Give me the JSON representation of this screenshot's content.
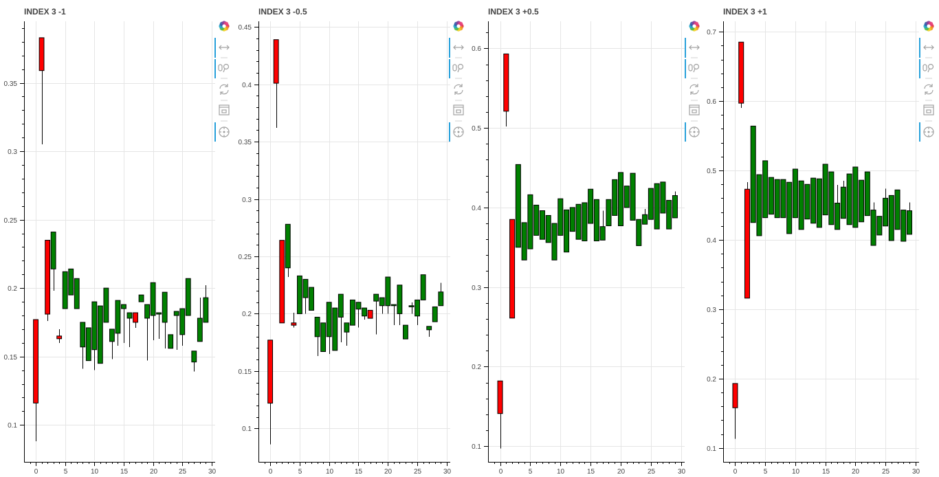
{
  "colors": {
    "increasing": "#008000",
    "decreasing": "#ff0000",
    "outline": "#000000",
    "grid": "#e5e5e5",
    "active_tool": "#26a0da"
  },
  "toolbar": {
    "icons": [
      "bokeh-logo-icon",
      "pan-icon",
      "wheel-zoom-icon",
      "reset-icon",
      "save-icon",
      "hover-icon"
    ]
  },
  "chart_data": [
    {
      "type": "candlestick",
      "title": "INDEX 3 -1",
      "xlim": [
        -2,
        30.6
      ],
      "ylim": [
        0.074,
        0.395
      ],
      "xticks": [
        0,
        5,
        10,
        15,
        20,
        25,
        30
      ],
      "yticks": [
        0.1,
        0.15,
        0.2,
        0.25,
        0.3,
        0.35
      ],
      "ytick_labels": [
        "0.1",
        "0.15",
        "0.2",
        "0.25",
        "0.3",
        "0.35"
      ],
      "candles": [
        {
          "x": 0,
          "open": 0.177,
          "close": 0.116,
          "high": 0.177,
          "low": 0.088
        },
        {
          "x": 1,
          "open": 0.383,
          "close": 0.359,
          "high": 0.383,
          "low": 0.305
        },
        {
          "x": 2,
          "open": 0.235,
          "close": 0.181,
          "high": 0.235,
          "low": 0.176
        },
        {
          "x": 3,
          "open": 0.214,
          "close": 0.241,
          "high": 0.241,
          "low": 0.198
        },
        {
          "x": 4,
          "open": 0.165,
          "close": 0.163,
          "high": 0.17,
          "low": 0.16
        },
        {
          "x": 5,
          "open": 0.185,
          "close": 0.212,
          "high": 0.212,
          "low": 0.185
        },
        {
          "x": 6,
          "open": 0.195,
          "close": 0.214,
          "high": 0.214,
          "low": 0.195
        },
        {
          "x": 7,
          "open": 0.185,
          "close": 0.207,
          "high": 0.207,
          "low": 0.185
        },
        {
          "x": 8,
          "open": 0.157,
          "close": 0.175,
          "high": 0.175,
          "low": 0.141
        },
        {
          "x": 9,
          "open": 0.147,
          "close": 0.171,
          "high": 0.171,
          "low": 0.147
        },
        {
          "x": 10,
          "open": 0.155,
          "close": 0.19,
          "high": 0.19,
          "low": 0.14
        },
        {
          "x": 11,
          "open": 0.145,
          "close": 0.187,
          "high": 0.187,
          "low": 0.145
        },
        {
          "x": 12,
          "open": 0.175,
          "close": 0.2,
          "high": 0.2,
          "low": 0.175
        },
        {
          "x": 13,
          "open": 0.161,
          "close": 0.17,
          "high": 0.17,
          "low": 0.148
        },
        {
          "x": 14,
          "open": 0.167,
          "close": 0.191,
          "high": 0.191,
          "low": 0.158
        },
        {
          "x": 15,
          "open": 0.185,
          "close": 0.188,
          "high": 0.188,
          "low": 0.16
        },
        {
          "x": 16,
          "open": 0.178,
          "close": 0.182,
          "high": 0.182,
          "low": 0.157
        },
        {
          "x": 17,
          "open": 0.182,
          "close": 0.175,
          "high": 0.182,
          "low": 0.171
        },
        {
          "x": 18,
          "open": 0.19,
          "close": 0.195,
          "high": 0.195,
          "low": 0.19
        },
        {
          "x": 19,
          "open": 0.178,
          "close": 0.188,
          "high": 0.188,
          "low": 0.147
        },
        {
          "x": 20,
          "open": 0.18,
          "close": 0.204,
          "high": 0.204,
          "low": 0.162
        },
        {
          "x": 21,
          "open": 0.181,
          "close": 0.182,
          "high": 0.182,
          "low": 0.163
        },
        {
          "x": 22,
          "open": 0.175,
          "close": 0.197,
          "high": 0.197,
          "low": 0.156
        },
        {
          "x": 23,
          "open": 0.156,
          "close": 0.166,
          "high": 0.166,
          "low": 0.156
        },
        {
          "x": 24,
          "open": 0.18,
          "close": 0.183,
          "high": 0.183,
          "low": 0.155
        },
        {
          "x": 25,
          "open": 0.166,
          "close": 0.185,
          "high": 0.185,
          "low": 0.158
        },
        {
          "x": 26,
          "open": 0.18,
          "close": 0.207,
          "high": 0.207,
          "low": 0.18
        },
        {
          "x": 27,
          "open": 0.146,
          "close": 0.154,
          "high": 0.154,
          "low": 0.139
        },
        {
          "x": 28,
          "open": 0.161,
          "close": 0.178,
          "high": 0.193,
          "low": 0.161
        },
        {
          "x": 29,
          "open": 0.175,
          "close": 0.193,
          "high": 0.202,
          "low": 0.175
        }
      ]
    },
    {
      "type": "candlestick",
      "title": "INDEX 3 -0.5",
      "xlim": [
        -2,
        30.6
      ],
      "ylim": [
        0.072,
        0.455
      ],
      "xticks": [
        0,
        5,
        10,
        15,
        20,
        25,
        30
      ],
      "yticks": [
        0.1,
        0.15,
        0.2,
        0.25,
        0.3,
        0.35,
        0.4,
        0.45
      ],
      "ytick_labels": [
        "0.1",
        "0.15",
        "0.2",
        "0.25",
        "0.3",
        "0.35",
        "0.4",
        "0.45"
      ],
      "candles": [
        {
          "x": 0,
          "open": 0.177,
          "close": 0.122,
          "high": 0.177,
          "low": 0.086
        },
        {
          "x": 1,
          "open": 0.439,
          "close": 0.401,
          "high": 0.439,
          "low": 0.362
        },
        {
          "x": 2,
          "open": 0.264,
          "close": 0.192,
          "high": 0.264,
          "low": 0.192
        },
        {
          "x": 3,
          "open": 0.24,
          "close": 0.278,
          "high": 0.278,
          "low": 0.232
        },
        {
          "x": 4,
          "open": 0.192,
          "close": 0.19,
          "high": 0.201,
          "low": 0.188
        },
        {
          "x": 5,
          "open": 0.2,
          "close": 0.233,
          "high": 0.233,
          "low": 0.2
        },
        {
          "x": 6,
          "open": 0.214,
          "close": 0.23,
          "high": 0.23,
          "low": 0.2
        },
        {
          "x": 7,
          "open": 0.203,
          "close": 0.223,
          "high": 0.223,
          "low": 0.203
        },
        {
          "x": 8,
          "open": 0.18,
          "close": 0.197,
          "high": 0.197,
          "low": 0.163
        },
        {
          "x": 9,
          "open": 0.167,
          "close": 0.192,
          "high": 0.192,
          "low": 0.167
        },
        {
          "x": 10,
          "open": 0.18,
          "close": 0.21,
          "high": 0.21,
          "low": 0.165
        },
        {
          "x": 11,
          "open": 0.168,
          "close": 0.205,
          "high": 0.205,
          "low": 0.168
        },
        {
          "x": 12,
          "open": 0.197,
          "close": 0.217,
          "high": 0.217,
          "low": 0.175
        },
        {
          "x": 13,
          "open": 0.184,
          "close": 0.192,
          "high": 0.192,
          "low": 0.172
        },
        {
          "x": 14,
          "open": 0.19,
          "close": 0.212,
          "high": 0.212,
          "low": 0.19
        },
        {
          "x": 15,
          "open": 0.204,
          "close": 0.21,
          "high": 0.21,
          "low": 0.188
        },
        {
          "x": 16,
          "open": 0.198,
          "close": 0.205,
          "high": 0.205,
          "low": 0.195
        },
        {
          "x": 17,
          "open": 0.203,
          "close": 0.196,
          "high": 0.203,
          "low": 0.196
        },
        {
          "x": 18,
          "open": 0.211,
          "close": 0.217,
          "high": 0.217,
          "low": 0.182
        },
        {
          "x": 19,
          "open": 0.207,
          "close": 0.214,
          "high": 0.214,
          "low": 0.2
        },
        {
          "x": 20,
          "open": 0.207,
          "close": 0.232,
          "high": 0.232,
          "low": 0.2
        },
        {
          "x": 21,
          "open": 0.207,
          "close": 0.208,
          "high": 0.208,
          "low": 0.19
        },
        {
          "x": 22,
          "open": 0.2,
          "close": 0.225,
          "high": 0.225,
          "low": 0.19
        },
        {
          "x": 23,
          "open": 0.178,
          "close": 0.19,
          "high": 0.19,
          "low": 0.178
        },
        {
          "x": 24,
          "open": 0.206,
          "close": 0.207,
          "high": 0.21,
          "low": 0.2
        },
        {
          "x": 25,
          "open": 0.198,
          "close": 0.212,
          "high": 0.212,
          "low": 0.19
        },
        {
          "x": 26,
          "open": 0.212,
          "close": 0.234,
          "high": 0.234,
          "low": 0.212
        },
        {
          "x": 27,
          "open": 0.186,
          "close": 0.189,
          "high": 0.189,
          "low": 0.18
        },
        {
          "x": 28,
          "open": 0.193,
          "close": 0.206,
          "high": 0.206,
          "low": 0.193
        },
        {
          "x": 29,
          "open": 0.207,
          "close": 0.219,
          "high": 0.227,
          "low": 0.207
        }
      ]
    },
    {
      "type": "candlestick",
      "title": "INDEX 3 +0.5",
      "xlim": [
        -2,
        30.6
      ],
      "ylim": [
        0.082,
        0.634
      ],
      "xticks": [
        0,
        5,
        10,
        15,
        20,
        25,
        30
      ],
      "yticks": [
        0.1,
        0.2,
        0.3,
        0.4,
        0.5,
        0.6
      ],
      "ytick_labels": [
        "0.1",
        "0.2",
        "0.3",
        "0.4",
        "0.5",
        "0.6"
      ],
      "candles": [
        {
          "x": 0,
          "open": 0.182,
          "close": 0.141,
          "high": 0.182,
          "low": 0.097
        },
        {
          "x": 1,
          "open": 0.593,
          "close": 0.521,
          "high": 0.593,
          "low": 0.502
        },
        {
          "x": 2,
          "open": 0.385,
          "close": 0.261,
          "high": 0.385,
          "low": 0.261
        },
        {
          "x": 3,
          "open": 0.35,
          "close": 0.454,
          "high": 0.454,
          "low": 0.35
        },
        {
          "x": 4,
          "open": 0.334,
          "close": 0.381,
          "high": 0.381,
          "low": 0.334
        },
        {
          "x": 5,
          "open": 0.348,
          "close": 0.416,
          "high": 0.416,
          "low": 0.348
        },
        {
          "x": 6,
          "open": 0.365,
          "close": 0.403,
          "high": 0.403,
          "low": 0.365
        },
        {
          "x": 7,
          "open": 0.36,
          "close": 0.396,
          "high": 0.396,
          "low": 0.36
        },
        {
          "x": 8,
          "open": 0.356,
          "close": 0.39,
          "high": 0.39,
          "low": 0.356
        },
        {
          "x": 9,
          "open": 0.334,
          "close": 0.38,
          "high": 0.38,
          "low": 0.334
        },
        {
          "x": 10,
          "open": 0.365,
          "close": 0.411,
          "high": 0.411,
          "low": 0.365
        },
        {
          "x": 11,
          "open": 0.344,
          "close": 0.397,
          "high": 0.397,
          "low": 0.344
        },
        {
          "x": 12,
          "open": 0.37,
          "close": 0.4,
          "high": 0.4,
          "low": 0.37
        },
        {
          "x": 13,
          "open": 0.36,
          "close": 0.404,
          "high": 0.404,
          "low": 0.36
        },
        {
          "x": 14,
          "open": 0.358,
          "close": 0.406,
          "high": 0.406,
          "low": 0.358
        },
        {
          "x": 15,
          "open": 0.38,
          "close": 0.423,
          "high": 0.423,
          "low": 0.38
        },
        {
          "x": 16,
          "open": 0.358,
          "close": 0.41,
          "high": 0.41,
          "low": 0.358
        },
        {
          "x": 17,
          "open": 0.359,
          "close": 0.376,
          "high": 0.396,
          "low": 0.359
        },
        {
          "x": 18,
          "open": 0.377,
          "close": 0.41,
          "high": 0.41,
          "low": 0.377
        },
        {
          "x": 19,
          "open": 0.39,
          "close": 0.435,
          "high": 0.435,
          "low": 0.39
        },
        {
          "x": 20,
          "open": 0.377,
          "close": 0.444,
          "high": 0.444,
          "low": 0.377
        },
        {
          "x": 21,
          "open": 0.4,
          "close": 0.427,
          "high": 0.427,
          "low": 0.4
        },
        {
          "x": 22,
          "open": 0.384,
          "close": 0.443,
          "high": 0.443,
          "low": 0.384
        },
        {
          "x": 23,
          "open": 0.352,
          "close": 0.385,
          "high": 0.385,
          "low": 0.352
        },
        {
          "x": 24,
          "open": 0.379,
          "close": 0.391,
          "high": 0.398,
          "low": 0.379
        },
        {
          "x": 25,
          "open": 0.385,
          "close": 0.424,
          "high": 0.424,
          "low": 0.385
        },
        {
          "x": 26,
          "open": 0.373,
          "close": 0.43,
          "high": 0.43,
          "low": 0.373
        },
        {
          "x": 27,
          "open": 0.393,
          "close": 0.432,
          "high": 0.432,
          "low": 0.393
        },
        {
          "x": 28,
          "open": 0.373,
          "close": 0.409,
          "high": 0.409,
          "low": 0.373
        },
        {
          "x": 29,
          "open": 0.387,
          "close": 0.415,
          "high": 0.42,
          "low": 0.387
        }
      ]
    },
    {
      "type": "candlestick",
      "title": "INDEX 3 +1",
      "xlim": [
        -2,
        30.6
      ],
      "ylim": [
        0.082,
        0.715
      ],
      "xticks": [
        0,
        5,
        10,
        15,
        20,
        25,
        30
      ],
      "yticks": [
        0.1,
        0.2,
        0.3,
        0.4,
        0.5,
        0.6,
        0.7
      ],
      "ytick_labels": [
        "0.1",
        "0.2",
        "0.3",
        "0.4",
        "0.5",
        "0.6",
        "0.7"
      ],
      "candles": [
        {
          "x": 0,
          "open": 0.193,
          "close": 0.158,
          "high": 0.193,
          "low": 0.113
        },
        {
          "x": 1,
          "open": 0.685,
          "close": 0.597,
          "high": 0.685,
          "low": 0.59
        },
        {
          "x": 2,
          "open": 0.473,
          "close": 0.316,
          "high": 0.483,
          "low": 0.316
        },
        {
          "x": 3,
          "open": 0.425,
          "close": 0.564,
          "high": 0.564,
          "low": 0.425
        },
        {
          "x": 4,
          "open": 0.406,
          "close": 0.494,
          "high": 0.494,
          "low": 0.406
        },
        {
          "x": 5,
          "open": 0.432,
          "close": 0.514,
          "high": 0.514,
          "low": 0.432
        },
        {
          "x": 6,
          "open": 0.437,
          "close": 0.49,
          "high": 0.49,
          "low": 0.437
        },
        {
          "x": 7,
          "open": 0.432,
          "close": 0.487,
          "high": 0.487,
          "low": 0.432
        },
        {
          "x": 8,
          "open": 0.432,
          "close": 0.487,
          "high": 0.487,
          "low": 0.432
        },
        {
          "x": 9,
          "open": 0.409,
          "close": 0.483,
          "high": 0.483,
          "low": 0.409
        },
        {
          "x": 10,
          "open": 0.432,
          "close": 0.502,
          "high": 0.502,
          "low": 0.432
        },
        {
          "x": 11,
          "open": 0.415,
          "close": 0.485,
          "high": 0.485,
          "low": 0.415
        },
        {
          "x": 12,
          "open": 0.43,
          "close": 0.48,
          "high": 0.48,
          "low": 0.43
        },
        {
          "x": 13,
          "open": 0.424,
          "close": 0.489,
          "high": 0.489,
          "low": 0.424
        },
        {
          "x": 14,
          "open": 0.418,
          "close": 0.488,
          "high": 0.488,
          "low": 0.418
        },
        {
          "x": 15,
          "open": 0.436,
          "close": 0.509,
          "high": 0.509,
          "low": 0.436
        },
        {
          "x": 16,
          "open": 0.422,
          "close": 0.498,
          "high": 0.498,
          "low": 0.422
        },
        {
          "x": 17,
          "open": 0.415,
          "close": 0.453,
          "high": 0.479,
          "low": 0.415
        },
        {
          "x": 18,
          "open": 0.431,
          "close": 0.476,
          "high": 0.485,
          "low": 0.431
        },
        {
          "x": 19,
          "open": 0.422,
          "close": 0.495,
          "high": 0.495,
          "low": 0.422
        },
        {
          "x": 20,
          "open": 0.418,
          "close": 0.505,
          "high": 0.505,
          "low": 0.418
        },
        {
          "x": 21,
          "open": 0.426,
          "close": 0.486,
          "high": 0.486,
          "low": 0.426
        },
        {
          "x": 22,
          "open": 0.435,
          "close": 0.498,
          "high": 0.498,
          "low": 0.435
        },
        {
          "x": 23,
          "open": 0.392,
          "close": 0.443,
          "high": 0.454,
          "low": 0.392
        },
        {
          "x": 24,
          "open": 0.407,
          "close": 0.434,
          "high": 0.434,
          "low": 0.407
        },
        {
          "x": 25,
          "open": 0.42,
          "close": 0.46,
          "high": 0.474,
          "low": 0.42
        },
        {
          "x": 26,
          "open": 0.399,
          "close": 0.464,
          "high": 0.464,
          "low": 0.399
        },
        {
          "x": 27,
          "open": 0.415,
          "close": 0.472,
          "high": 0.472,
          "low": 0.415
        },
        {
          "x": 28,
          "open": 0.398,
          "close": 0.443,
          "high": 0.443,
          "low": 0.398
        },
        {
          "x": 29,
          "open": 0.408,
          "close": 0.442,
          "high": 0.454,
          "low": 0.408
        }
      ]
    }
  ]
}
